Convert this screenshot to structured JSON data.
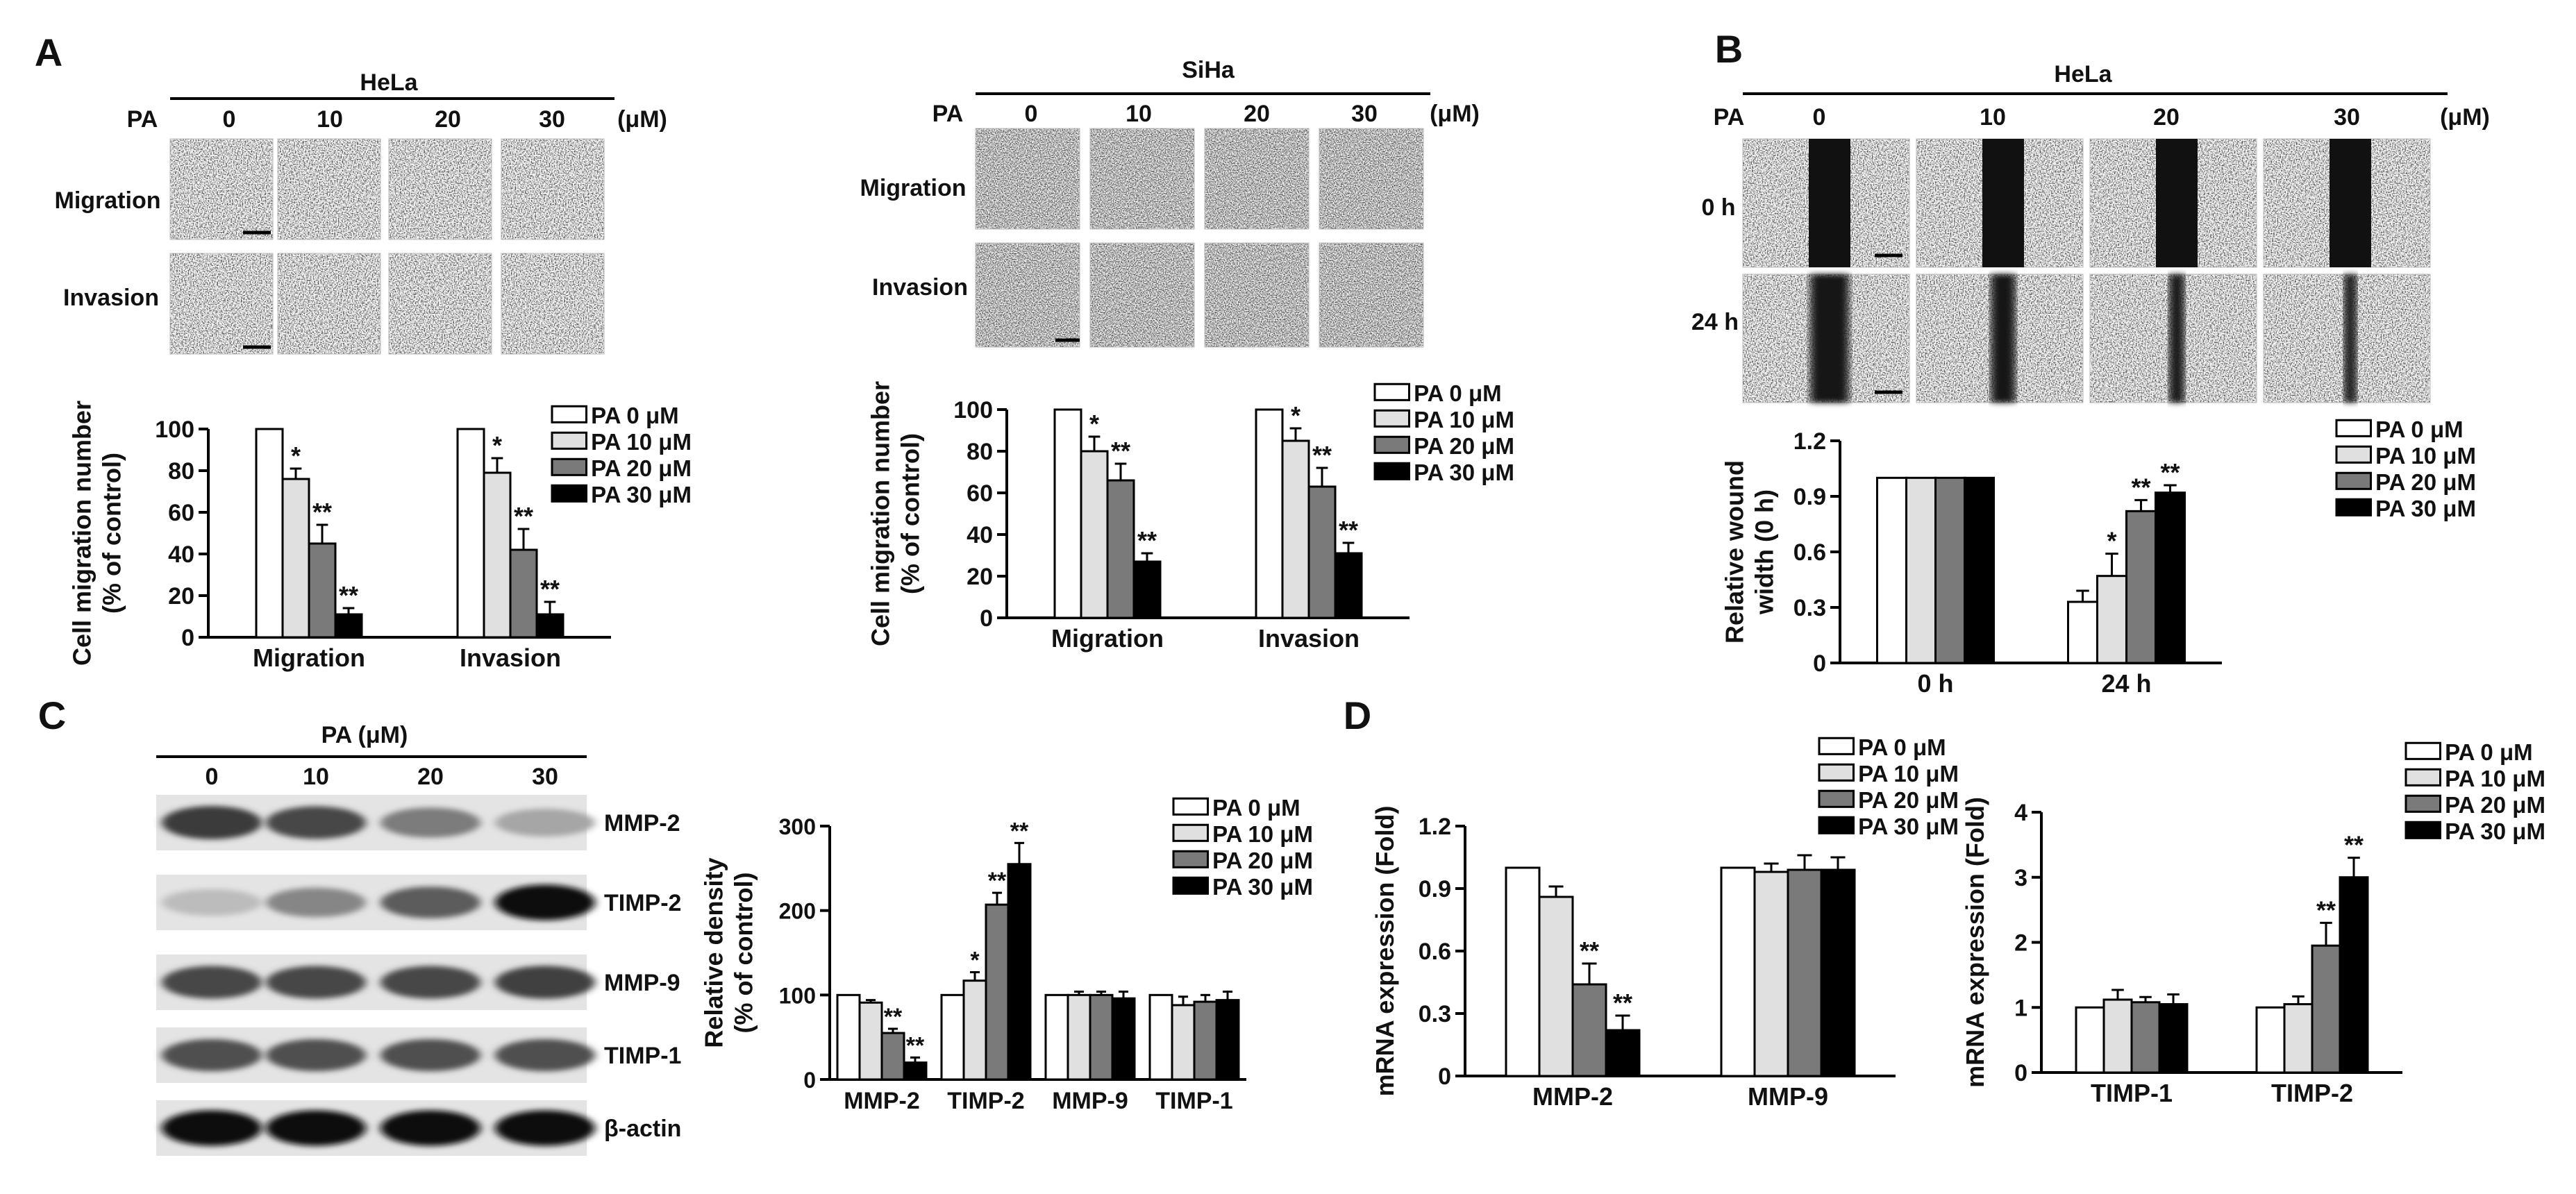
{
  "panels": {
    "A": {
      "letter": "A",
      "groups": [
        {
          "cell_line": "HeLa",
          "treatment_label": "PA",
          "doses": [
            "0",
            "10",
            "20",
            "30"
          ],
          "unit": "(μM)",
          "rows": [
            "Migration",
            "Invasion"
          ]
        },
        {
          "cell_line": "SiHa",
          "treatment_label": "PA",
          "doses": [
            "0",
            "10",
            "20",
            "30"
          ],
          "unit": "(μM)",
          "rows": [
            "Migration",
            "Invasion"
          ]
        }
      ]
    },
    "B": {
      "letter": "B",
      "cell_line": "HeLa",
      "treatment_label": "PA",
      "doses": [
        "0",
        "10",
        "20",
        "30"
      ],
      "unit": "(μM)",
      "rows": [
        "0 h",
        "24 h"
      ]
    },
    "C": {
      "letter": "C",
      "header": "PA (μM)",
      "doses": [
        "0",
        "10",
        "20",
        "30"
      ],
      "bands": [
        "MMP-2",
        "TIMP-2",
        "MMP-9",
        "TIMP-1",
        "β-actin"
      ],
      "band_intensity": [
        [
          0.75,
          0.7,
          0.45,
          0.25
        ],
        [
          0.15,
          0.4,
          0.6,
          0.95
        ],
        [
          0.7,
          0.7,
          0.7,
          0.72
        ],
        [
          0.65,
          0.65,
          0.65,
          0.65
        ],
        [
          0.95,
          0.95,
          0.95,
          0.95
        ]
      ]
    },
    "D": {
      "letter": "D"
    }
  },
  "legend_entries": [
    "PA   0 μM",
    "PA 10 μM",
    "PA 20 μM",
    "PA 30 μM"
  ],
  "series_colors": [
    "#ffffff",
    "#e0e0e0",
    "#7a7a7a",
    "#000000"
  ],
  "chart_data": [
    {
      "type": "bar",
      "panel": "A-HeLa",
      "categories": [
        "Migration",
        "Invasion"
      ],
      "ylabel": "Cell migration number\n(% of control)",
      "ylim": [
        0,
        100
      ],
      "yticks": [
        "0",
        "20",
        "40",
        "60",
        "80",
        "100"
      ],
      "series": [
        {
          "name": "PA   0 μM",
          "values": [
            100,
            100
          ],
          "errors": [
            0,
            0
          ],
          "marks": [
            "",
            ""
          ]
        },
        {
          "name": "PA 10 μM",
          "values": [
            76,
            79
          ],
          "errors": [
            5,
            7
          ],
          "marks": [
            "*",
            "*"
          ]
        },
        {
          "name": "PA 20 μM",
          "values": [
            45,
            42
          ],
          "errors": [
            9,
            10
          ],
          "marks": [
            "**",
            "**"
          ]
        },
        {
          "name": "PA 30 μM",
          "values": [
            11,
            11
          ],
          "errors": [
            3,
            6
          ],
          "marks": [
            "**",
            "**"
          ]
        }
      ]
    },
    {
      "type": "bar",
      "panel": "A-SiHa",
      "categories": [
        "Migration",
        "Invasion"
      ],
      "ylabel": "Cell migration number\n(% of control)",
      "ylim": [
        0,
        100
      ],
      "yticks": [
        "0",
        "20",
        "40",
        "60",
        "80",
        "100"
      ],
      "series": [
        {
          "name": "PA   0 μM",
          "values": [
            100,
            100
          ],
          "errors": [
            0,
            0
          ],
          "marks": [
            "",
            ""
          ]
        },
        {
          "name": "PA 10 μM",
          "values": [
            80,
            85
          ],
          "errors": [
            7,
            6
          ],
          "marks": [
            "*",
            "*"
          ]
        },
        {
          "name": "PA 20 μM",
          "values": [
            66,
            63
          ],
          "errors": [
            8,
            9
          ],
          "marks": [
            "**",
            "**"
          ]
        },
        {
          "name": "PA 30 μM",
          "values": [
            27,
            31
          ],
          "errors": [
            4,
            5
          ],
          "marks": [
            "**",
            "**"
          ]
        }
      ]
    },
    {
      "type": "bar",
      "panel": "B",
      "categories": [
        "0 h",
        "24 h"
      ],
      "ylabel": "Relative wound\nwidth (0 h)",
      "ylim": [
        0,
        1.2
      ],
      "yticks": [
        "0",
        "0.3",
        "0.6",
        "0.9",
        "1.2"
      ],
      "series": [
        {
          "name": "PA   0 μM",
          "values": [
            1.0,
            0.33
          ],
          "errors": [
            0,
            0.06
          ],
          "marks": [
            "",
            ""
          ]
        },
        {
          "name": "PA 10 μM",
          "values": [
            1.0,
            0.47
          ],
          "errors": [
            0,
            0.12
          ],
          "marks": [
            "",
            "*"
          ]
        },
        {
          "name": "PA 20 μM",
          "values": [
            1.0,
            0.82
          ],
          "errors": [
            0,
            0.06
          ],
          "marks": [
            "",
            "**"
          ]
        },
        {
          "name": "PA 30 μM",
          "values": [
            1.0,
            0.92
          ],
          "errors": [
            0,
            0.04
          ],
          "marks": [
            "",
            "**"
          ]
        }
      ]
    },
    {
      "type": "bar",
      "panel": "C",
      "categories": [
        "MMP-2",
        "TIMP-2",
        "MMP-9",
        "TIMP-1"
      ],
      "ylabel": "Relative density\n(% of control)",
      "ylim": [
        0,
        300
      ],
      "yticks": [
        "0",
        "100",
        "200",
        "300"
      ],
      "series": [
        {
          "name": "PA   0 μM",
          "values": [
            100,
            100,
            100,
            100
          ],
          "errors": [
            0,
            0,
            0,
            0
          ],
          "marks": [
            "",
            "",
            "",
            ""
          ]
        },
        {
          "name": "PA 10 μM",
          "values": [
            91,
            117,
            100,
            88
          ],
          "errors": [
            3,
            10,
            4,
            10
          ],
          "marks": [
            "",
            "*",
            "",
            ""
          ]
        },
        {
          "name": "PA 20 μM",
          "values": [
            55,
            207,
            100,
            92
          ],
          "errors": [
            5,
            14,
            4,
            8
          ],
          "marks": [
            "**",
            "**",
            "",
            ""
          ]
        },
        {
          "name": "PA 30 μM",
          "values": [
            20,
            255,
            96,
            94
          ],
          "errors": [
            6,
            25,
            8,
            10
          ],
          "marks": [
            "**",
            "**",
            "",
            ""
          ]
        }
      ]
    },
    {
      "type": "bar",
      "panel": "D-left",
      "categories": [
        "MMP-2",
        "MMP-9"
      ],
      "ylabel": "mRNA expression (Fold)",
      "ylim": [
        0,
        1.2
      ],
      "yticks": [
        "0",
        "0.3",
        "0.6",
        "0.9",
        "1.2"
      ],
      "series": [
        {
          "name": "PA   0 μM",
          "values": [
            1.0,
            1.0
          ],
          "errors": [
            0,
            0
          ],
          "marks": [
            "",
            ""
          ]
        },
        {
          "name": "PA 10 μM",
          "values": [
            0.86,
            0.98
          ],
          "errors": [
            0.05,
            0.04
          ],
          "marks": [
            "",
            ""
          ]
        },
        {
          "name": "PA 20 μM",
          "values": [
            0.44,
            0.99
          ],
          "errors": [
            0.1,
            0.07
          ],
          "marks": [
            "**",
            ""
          ]
        },
        {
          "name": "PA 30 μM",
          "values": [
            0.22,
            0.99
          ],
          "errors": [
            0.07,
            0.06
          ],
          "marks": [
            "**",
            ""
          ]
        }
      ]
    },
    {
      "type": "bar",
      "panel": "D-right",
      "categories": [
        "TIMP-1",
        "TIMP-2"
      ],
      "ylabel": "mRNA expression (Fold)",
      "ylim": [
        0,
        4
      ],
      "yticks": [
        "0",
        "1",
        "2",
        "3",
        "4"
      ],
      "series": [
        {
          "name": "PA   0 μM",
          "values": [
            1.0,
            1.0
          ],
          "errors": [
            0,
            0
          ],
          "marks": [
            "",
            ""
          ]
        },
        {
          "name": "PA 10 μM",
          "values": [
            1.12,
            1.05
          ],
          "errors": [
            0.15,
            0.12
          ],
          "marks": [
            "",
            ""
          ]
        },
        {
          "name": "PA 20 μM",
          "values": [
            1.08,
            1.95
          ],
          "errors": [
            0.08,
            0.35
          ],
          "marks": [
            "",
            "**"
          ]
        },
        {
          "name": "PA 30 μM",
          "values": [
            1.05,
            3.0
          ],
          "errors": [
            0.15,
            0.3
          ],
          "marks": [
            "",
            "**"
          ]
        }
      ]
    }
  ]
}
